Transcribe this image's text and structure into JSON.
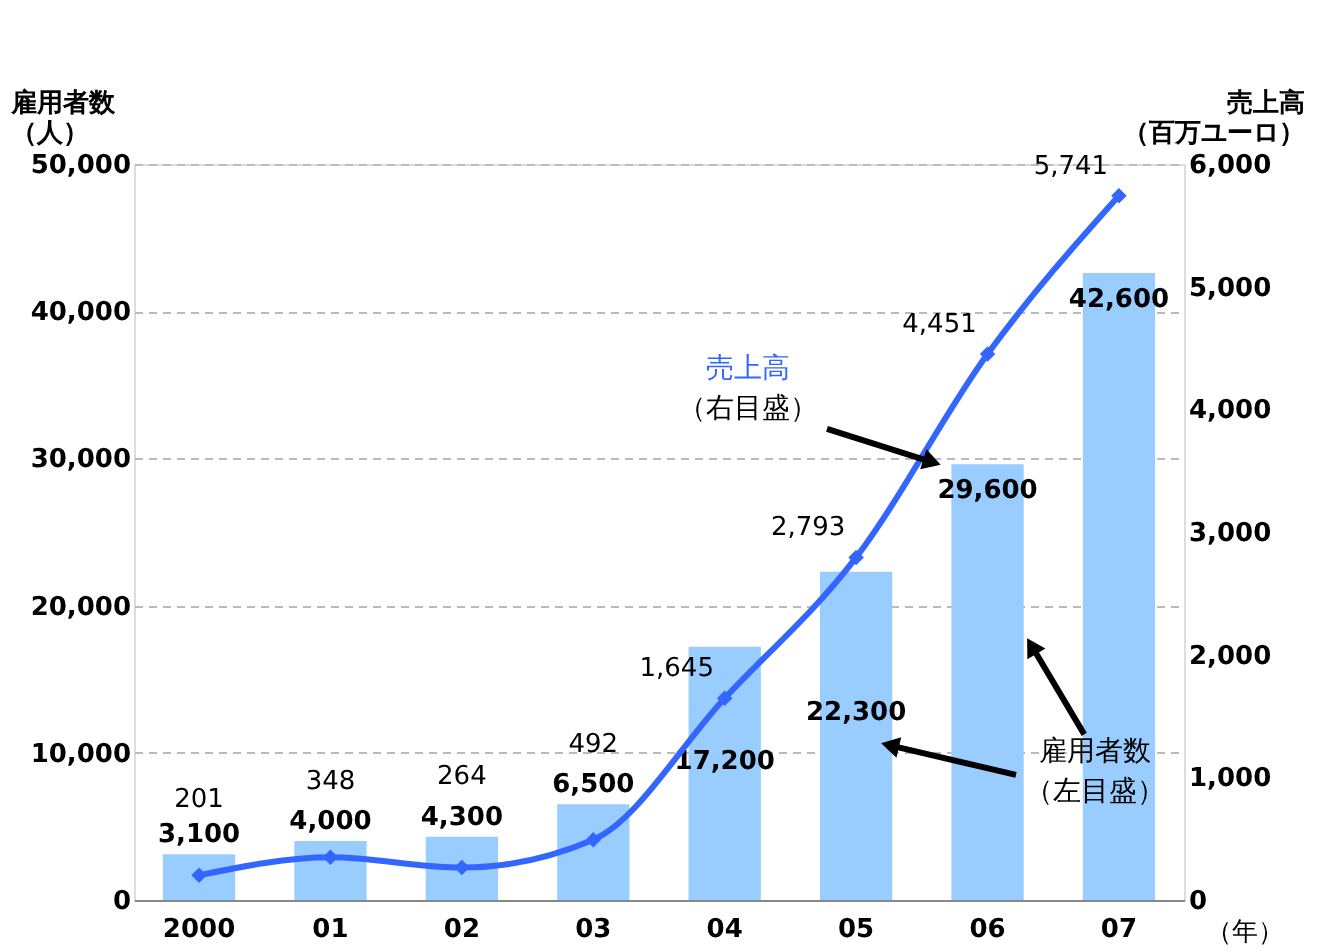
{
  "chart_data": {
    "type": "bar",
    "categories": [
      "2000",
      "01",
      "02",
      "03",
      "04",
      "05",
      "06",
      "07"
    ],
    "ylabel": "雇用者数（人）",
    "y2label": "売上高（百万ユーロ）",
    "series": [
      {
        "name": "雇用者数",
        "color": "#99ccff",
        "values": [
          3100,
          4000,
          4300,
          6500,
          17200,
          22300,
          29600,
          42600
        ],
        "value_labels": [
          "3,100",
          "4,000",
          "4,300",
          "6,500",
          "17,200",
          "22,300",
          "29,600",
          "42,600"
        ]
      },
      {
        "name": "売上高",
        "type": "line",
        "axis": "y2",
        "color": "#3366ff",
        "marker": "diamond",
        "values": [
          201,
          348,
          264,
          492,
          1645,
          2793,
          4451,
          5741
        ],
        "value_labels": [
          "201",
          "348",
          "264",
          "492",
          "1,645",
          "2,793",
          "4,451",
          "5,741"
        ]
      }
    ],
    "ylim": [
      0,
      50000
    ],
    "yticks": [
      0,
      {
        "value": 10000,
        "label": "10,000"
      },
      {
        "value": 20000,
        "label": "20,000"
      },
      {
        "value": 30000,
        "label": "30,000"
      },
      {
        "value": 40000,
        "label": "40,000"
      },
      {
        "value": 50000,
        "label": "50,000"
      }
    ],
    "y2lim": [
      0,
      6000
    ],
    "y2ticks": [
      0,
      {
        "value": 1000,
        "label": "1,000"
      },
      {
        "value": 2000,
        "label": "2,000"
      },
      {
        "value": 3000,
        "label": "3,000"
      },
      {
        "value": 4000,
        "label": "4,000"
      },
      {
        "value": 5000,
        "label": "5,000"
      },
      {
        "value": 6000,
        "label": "6,000"
      }
    ],
    "grid": "y",
    "annotations": [
      "（右目盛）",
      "（左目盛）",
      "（年）"
    ]
  }
}
